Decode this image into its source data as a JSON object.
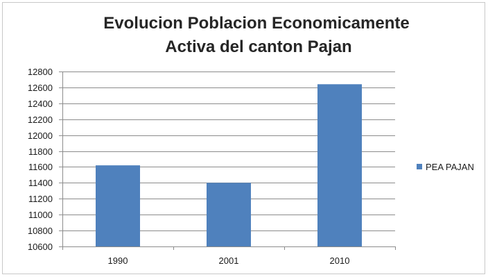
{
  "chart_data": {
    "type": "bar",
    "title_lines": [
      "Evolucion Poblacion Economicamente",
      "Activa del canton Pajan"
    ],
    "categories": [
      "1990",
      "2001",
      "2010"
    ],
    "series": [
      {
        "name": "PEA PAJAN",
        "values": [
          11620,
          11400,
          12640
        ],
        "color": "#4f81bd"
      }
    ],
    "ylim": [
      10600,
      12800
    ],
    "yticks": [
      "10600",
      "10800",
      "11000",
      "11200",
      "11400",
      "11600",
      "11800",
      "12000",
      "12200",
      "12400",
      "12600",
      "12800"
    ],
    "grid": true,
    "legend_position": "right"
  }
}
